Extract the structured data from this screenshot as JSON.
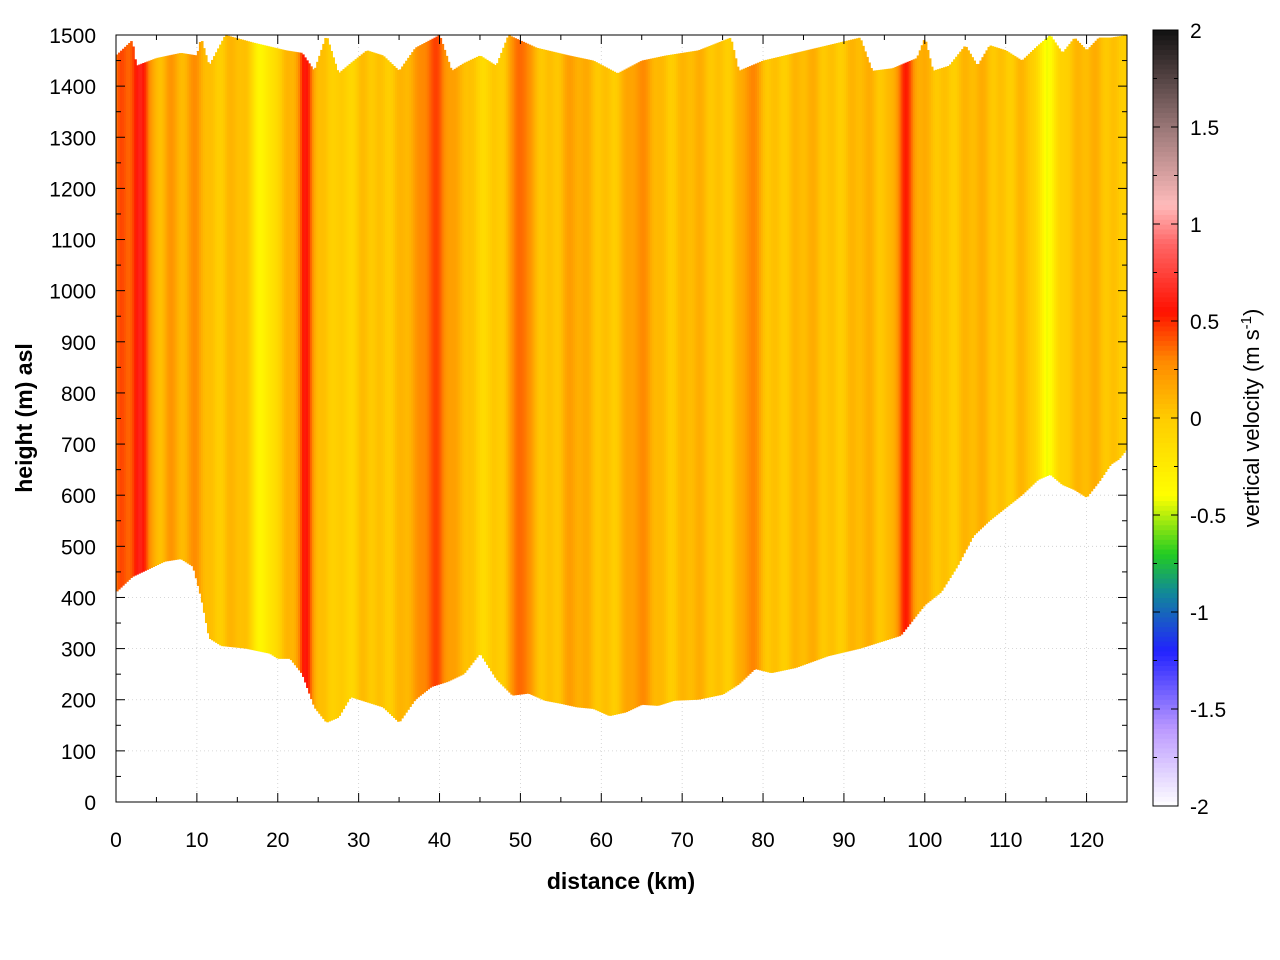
{
  "chart_data": {
    "type": "heatmap",
    "title": "",
    "xlabel": "distance (km)",
    "ylabel": "height (m) asl",
    "colorbar_label": "vertical velocity (m s",
    "colorbar_label_superscript": "-1",
    "colorbar_label_close": ")",
    "xlim": [
      0,
      125
    ],
    "ylim": [
      0,
      1500
    ],
    "clim": [
      -2,
      2
    ],
    "grid": true,
    "x_ticks": [
      "0",
      "10",
      "20",
      "30",
      "40",
      "50",
      "60",
      "70",
      "80",
      "90",
      "100",
      "110",
      "120"
    ],
    "y_ticks": [
      "0",
      "100",
      "200",
      "300",
      "400",
      "500",
      "600",
      "700",
      "800",
      "900",
      "1000",
      "1100",
      "1200",
      "1300",
      "1400",
      "1500"
    ],
    "colorbar_ticks": [
      "2",
      "1.5",
      "1",
      "0.5",
      "0",
      "-0.5",
      "-1",
      "-1.5",
      "-2"
    ],
    "colormap": [
      {
        "v": -2.0,
        "color": "#ffffff"
      },
      {
        "v": -1.6,
        "color": "#bb99ff"
      },
      {
        "v": -1.2,
        "color": "#2222ff"
      },
      {
        "v": -0.9,
        "color": "#118899"
      },
      {
        "v": -0.7,
        "color": "#22cc22"
      },
      {
        "v": -0.4,
        "color": "#ffff00"
      },
      {
        "v": 0.0,
        "color": "#ffcc00"
      },
      {
        "v": 0.3,
        "color": "#ff8800"
      },
      {
        "v": 0.55,
        "color": "#ff1100"
      },
      {
        "v": 0.9,
        "color": "#ff6666"
      },
      {
        "v": 1.1,
        "color": "#ffbbbb"
      },
      {
        "v": 1.5,
        "color": "#997777"
      },
      {
        "v": 2.0,
        "color": "#111111"
      }
    ],
    "terrain_bottom": [
      [
        0,
        410
      ],
      [
        2,
        440
      ],
      [
        4,
        455
      ],
      [
        6,
        470
      ],
      [
        8,
        475
      ],
      [
        9.5,
        460
      ],
      [
        10.5,
        400
      ],
      [
        11.5,
        320
      ],
      [
        13,
        305
      ],
      [
        16,
        300
      ],
      [
        19,
        290
      ],
      [
        20,
        280
      ],
      [
        21.5,
        280
      ],
      [
        23,
        250
      ],
      [
        24.5,
        185
      ],
      [
        26,
        155
      ],
      [
        27.5,
        165
      ],
      [
        29,
        205
      ],
      [
        31,
        195
      ],
      [
        33,
        185
      ],
      [
        35,
        155
      ],
      [
        37,
        200
      ],
      [
        39,
        225
      ],
      [
        41,
        235
      ],
      [
        43,
        250
      ],
      [
        45,
        290
      ],
      [
        47,
        240
      ],
      [
        49,
        208
      ],
      [
        51,
        212
      ],
      [
        53,
        198
      ],
      [
        55,
        192
      ],
      [
        57,
        185
      ],
      [
        59,
        182
      ],
      [
        61,
        168
      ],
      [
        63,
        175
      ],
      [
        65,
        190
      ],
      [
        67,
        188
      ],
      [
        69,
        198
      ],
      [
        72,
        200
      ],
      [
        75,
        210
      ],
      [
        77,
        230
      ],
      [
        79,
        260
      ],
      [
        81,
        252
      ],
      [
        84,
        262
      ],
      [
        88,
        285
      ],
      [
        92,
        300
      ],
      [
        95,
        315
      ],
      [
        97,
        325
      ],
      [
        98,
        345
      ],
      [
        100,
        385
      ],
      [
        102,
        410
      ],
      [
        104,
        460
      ],
      [
        106,
        520
      ],
      [
        108,
        550
      ],
      [
        110,
        575
      ],
      [
        112,
        600
      ],
      [
        114,
        630
      ],
      [
        115.5,
        640
      ],
      [
        117,
        620
      ],
      [
        118.5,
        610
      ],
      [
        120,
        595
      ],
      [
        121.5,
        625
      ],
      [
        123,
        660
      ],
      [
        124,
        670
      ],
      [
        125,
        690
      ]
    ],
    "top_boundary": [
      [
        0,
        1460
      ],
      [
        2,
        1490
      ],
      [
        2.5,
        1440
      ],
      [
        5,
        1455
      ],
      [
        8,
        1465
      ],
      [
        10,
        1460
      ],
      [
        10.5,
        1495
      ],
      [
        11.5,
        1440
      ],
      [
        13.5,
        1500
      ],
      [
        17,
        1485
      ],
      [
        21,
        1470
      ],
      [
        23,
        1465
      ],
      [
        24.5,
        1430
      ],
      [
        26,
        1500
      ],
      [
        27.5,
        1425
      ],
      [
        29,
        1445
      ],
      [
        31,
        1470
      ],
      [
        33,
        1460
      ],
      [
        35,
        1430
      ],
      [
        37,
        1475
      ],
      [
        40,
        1500
      ],
      [
        41.5,
        1430
      ],
      [
        43,
        1445
      ],
      [
        45,
        1460
      ],
      [
        47,
        1440
      ],
      [
        48.5,
        1500
      ],
      [
        52,
        1475
      ],
      [
        56,
        1460
      ],
      [
        59,
        1450
      ],
      [
        62,
        1425
      ],
      [
        65,
        1450
      ],
      [
        68,
        1460
      ],
      [
        72,
        1470
      ],
      [
        76,
        1495
      ],
      [
        77,
        1430
      ],
      [
        80,
        1450
      ],
      [
        84,
        1465
      ],
      [
        88,
        1480
      ],
      [
        92,
        1495
      ],
      [
        93.5,
        1430
      ],
      [
        96,
        1435
      ],
      [
        99,
        1455
      ],
      [
        100,
        1495
      ],
      [
        101,
        1430
      ],
      [
        103,
        1440
      ],
      [
        105,
        1480
      ],
      [
        106.5,
        1440
      ],
      [
        108,
        1480
      ],
      [
        110,
        1470
      ],
      [
        112,
        1450
      ],
      [
        114,
        1480
      ],
      [
        115.5,
        1500
      ],
      [
        117,
        1465
      ],
      [
        118.5,
        1495
      ],
      [
        120,
        1470
      ],
      [
        121.5,
        1495
      ],
      [
        123,
        1495
      ],
      [
        125,
        1500
      ]
    ],
    "vertical_features": [
      {
        "x": 0.8,
        "width": 1.2,
        "amplitude": 0.35
      },
      {
        "x": 3.2,
        "width": 1.1,
        "amplitude": 0.55
      },
      {
        "x": 6.5,
        "width": 0.9,
        "amplitude": 0.18
      },
      {
        "x": 10.0,
        "width": 0.9,
        "amplitude": 0.18
      },
      {
        "x": 18.0,
        "width": 1.6,
        "amplitude": -0.35
      },
      {
        "x": 23.5,
        "width": 1.0,
        "amplitude": 0.45
      },
      {
        "x": 29.0,
        "width": 1.5,
        "amplitude": -0.15
      },
      {
        "x": 39.5,
        "width": 2.0,
        "amplitude": 0.4
      },
      {
        "x": 45.0,
        "width": 1.4,
        "amplitude": -0.15
      },
      {
        "x": 50.0,
        "width": 1.2,
        "amplitude": 0.3
      },
      {
        "x": 56.0,
        "width": 1.5,
        "amplitude": 0.1
      },
      {
        "x": 65.0,
        "width": 2.0,
        "amplitude": 0.15
      },
      {
        "x": 78.5,
        "width": 1.0,
        "amplitude": 0.2
      },
      {
        "x": 97.5,
        "width": 1.2,
        "amplitude": 0.45
      },
      {
        "x": 115.0,
        "width": 1.4,
        "amplitude": -0.45
      }
    ]
  }
}
